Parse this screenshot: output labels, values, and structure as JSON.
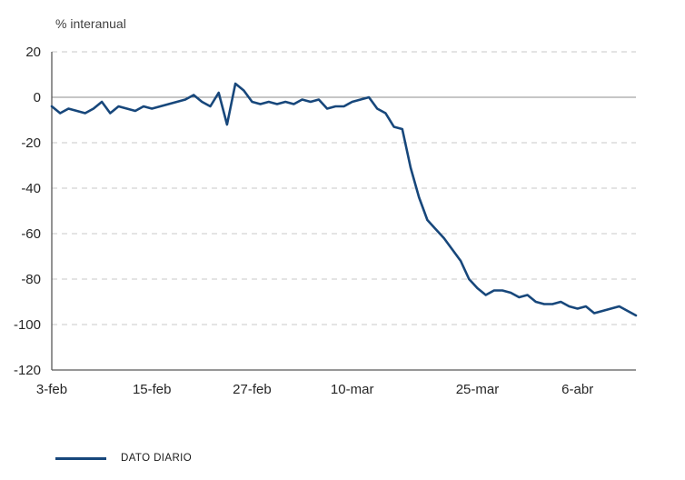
{
  "chart_data": {
    "type": "line",
    "title": "% interanual",
    "ylim": [
      -120,
      20
    ],
    "y_ticks": [
      20,
      0,
      -20,
      -40,
      -60,
      -80,
      -100,
      -120
    ],
    "x_tick_labels": [
      "3-feb",
      "15-feb",
      "27-feb",
      "10-mar",
      "25-mar",
      "6-abr"
    ],
    "x_tick_indices": [
      0,
      12,
      24,
      36,
      51,
      63
    ],
    "grid": "dashed-horizontal",
    "zero_line": true,
    "legend_position": "bottom-left",
    "colors": {
      "grid": "#c8c8c8",
      "zero_line": "#8c8c8c",
      "axis": "#595959",
      "text": "#262626"
    },
    "series": [
      {
        "name": "DATO DIARIO",
        "color": "#17477b",
        "x": [
          "3-feb",
          "4-feb",
          "5-feb",
          "6-feb",
          "7-feb",
          "8-feb",
          "9-feb",
          "10-feb",
          "11-feb",
          "12-feb",
          "13-feb",
          "14-feb",
          "15-feb",
          "16-feb",
          "17-feb",
          "18-feb",
          "19-feb",
          "20-feb",
          "21-feb",
          "22-feb",
          "23-feb",
          "24-feb",
          "25-feb",
          "26-feb",
          "27-feb",
          "28-feb",
          "29-feb",
          "1-mar",
          "2-mar",
          "3-mar",
          "4-mar",
          "5-mar",
          "6-mar",
          "7-mar",
          "8-mar",
          "9-mar",
          "10-mar",
          "11-mar",
          "12-mar",
          "13-mar",
          "14-mar",
          "15-mar",
          "16-mar",
          "17-mar",
          "18-mar",
          "19-mar",
          "20-mar",
          "21-mar",
          "22-mar",
          "23-mar",
          "24-mar",
          "25-mar",
          "26-mar",
          "27-mar",
          "28-mar",
          "29-mar",
          "30-mar",
          "31-mar",
          "1-abr",
          "2-abr",
          "3-abr",
          "4-abr",
          "5-abr",
          "6-abr",
          "7-abr",
          "8-abr",
          "9-abr",
          "10-abr",
          "11-abr",
          "12-abr",
          "13-abr"
        ],
        "values": [
          -4,
          -7,
          -5,
          -6,
          -7,
          -5,
          -2,
          -7,
          -4,
          -5,
          -6,
          -4,
          -5,
          -4,
          -3,
          -2,
          -1,
          1,
          -2,
          -4,
          2,
          -12,
          6,
          3,
          -2,
          -3,
          -2,
          -3,
          -2,
          -3,
          -1,
          -2,
          -1,
          -5,
          -4,
          -4,
          -2,
          -1,
          0,
          -5,
          -7,
          -13,
          -14,
          -31,
          -44,
          -54,
          -58,
          -62,
          -67,
          -72,
          -80,
          -84,
          -87,
          -85,
          -85,
          -86,
          -88,
          -87,
          -90,
          -91,
          -91,
          -90,
          -92,
          -93,
          -92,
          -95,
          -94,
          -93,
          -92,
          -94,
          -96
        ]
      }
    ]
  },
  "legend": {
    "label": "DATO DIARIO"
  }
}
